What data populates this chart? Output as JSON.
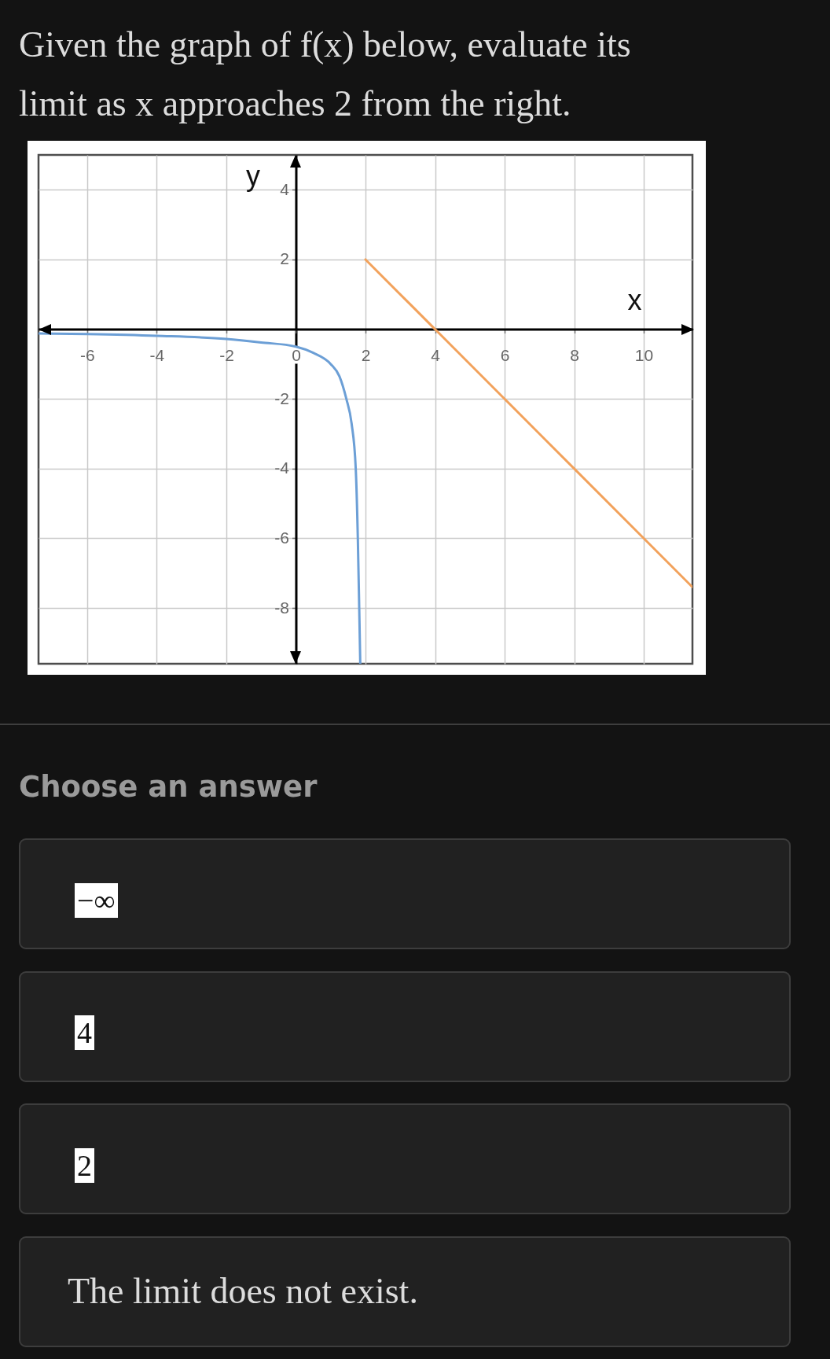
{
  "chart_data": {
    "type": "line",
    "title": "Given the graph of f(x) below, evaluate its limit as x approaches 2 from the right.",
    "xlabel": "x",
    "ylabel": "y",
    "series": [
      {
        "color": "#6c9fd6",
        "x": [
          -7.4,
          -6,
          -4,
          -2,
          -1,
          0,
          0.5,
          1,
          1.25,
          1.45,
          1.6,
          1.72,
          1.78,
          1.82,
          1.85
        ],
        "values": [
          -0.12,
          -0.14,
          -0.19,
          -0.28,
          -0.38,
          -0.5,
          -0.68,
          -1,
          -1.35,
          -2,
          -2.7,
          -4,
          -6,
          -8,
          -9.6
        ]
      },
      {
        "color": "#f2a25c",
        "x": [
          2,
          4,
          6,
          8,
          10,
          11.4
        ],
        "values": [
          2,
          0,
          -2,
          -4,
          -6,
          -7.4
        ]
      }
    ],
    "xlim": [
      -7.4,
      11.4
    ],
    "ylim": [
      -9.6,
      5
    ],
    "xticks": [
      -6,
      -4,
      -2,
      0,
      2,
      4,
      6,
      8,
      10
    ],
    "yticks": [
      -8,
      -6,
      -4,
      -2,
      2,
      4
    ],
    "grid": true,
    "line_style": "solid",
    "annotations": [
      "Choose an answer",
      "−∞",
      "4",
      "2",
      "The limit does not exist."
    ]
  }
}
